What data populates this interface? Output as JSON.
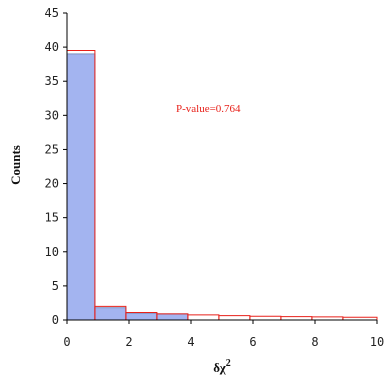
{
  "chart_data": {
    "type": "bar",
    "title": "",
    "xlabel": "δχ",
    "xlabel_superscript": "2",
    "ylabel": "Counts",
    "xlim": [
      0,
      10
    ],
    "ylim": [
      0,
      45
    ],
    "xticks": [
      0,
      2,
      4,
      6,
      8,
      10
    ],
    "yticks": [
      0,
      5,
      10,
      15,
      20,
      25,
      30,
      35,
      40,
      45
    ],
    "grid": false,
    "series": [
      {
        "style": "filled-bars",
        "color": "#a3b4f0",
        "edge_color": "#7f8fbf",
        "bins": [
          {
            "x0": 0.0,
            "x1": 0.9,
            "value": 39
          },
          {
            "x0": 0.9,
            "x1": 1.9,
            "value": 1.8
          },
          {
            "x0": 1.9,
            "x1": 2.9,
            "value": 1.0
          },
          {
            "x0": 2.9,
            "x1": 3.9,
            "value": 0.9
          }
        ]
      },
      {
        "style": "step-outline",
        "color": "#e8211a",
        "bins": [
          {
            "x0": 0.0,
            "x1": 0.9,
            "value": 39.5
          },
          {
            "x0": 0.9,
            "x1": 1.9,
            "value": 2.0
          },
          {
            "x0": 1.9,
            "x1": 2.9,
            "value": 1.1
          },
          {
            "x0": 2.9,
            "x1": 3.9,
            "value": 0.9
          },
          {
            "x0": 3.9,
            "x1": 4.9,
            "value": 0.75
          },
          {
            "x0": 4.9,
            "x1": 5.9,
            "value": 0.65
          },
          {
            "x0": 5.9,
            "x1": 6.9,
            "value": 0.55
          },
          {
            "x0": 6.9,
            "x1": 7.9,
            "value": 0.5
          },
          {
            "x0": 7.9,
            "x1": 8.9,
            "value": 0.45
          },
          {
            "x0": 8.9,
            "x1": 10.0,
            "value": 0.4
          }
        ]
      }
    ],
    "annotations": [
      {
        "text": "P-value=0.764",
        "x": 3.0,
        "y": 30.5,
        "color": "#e8211a"
      }
    ]
  }
}
